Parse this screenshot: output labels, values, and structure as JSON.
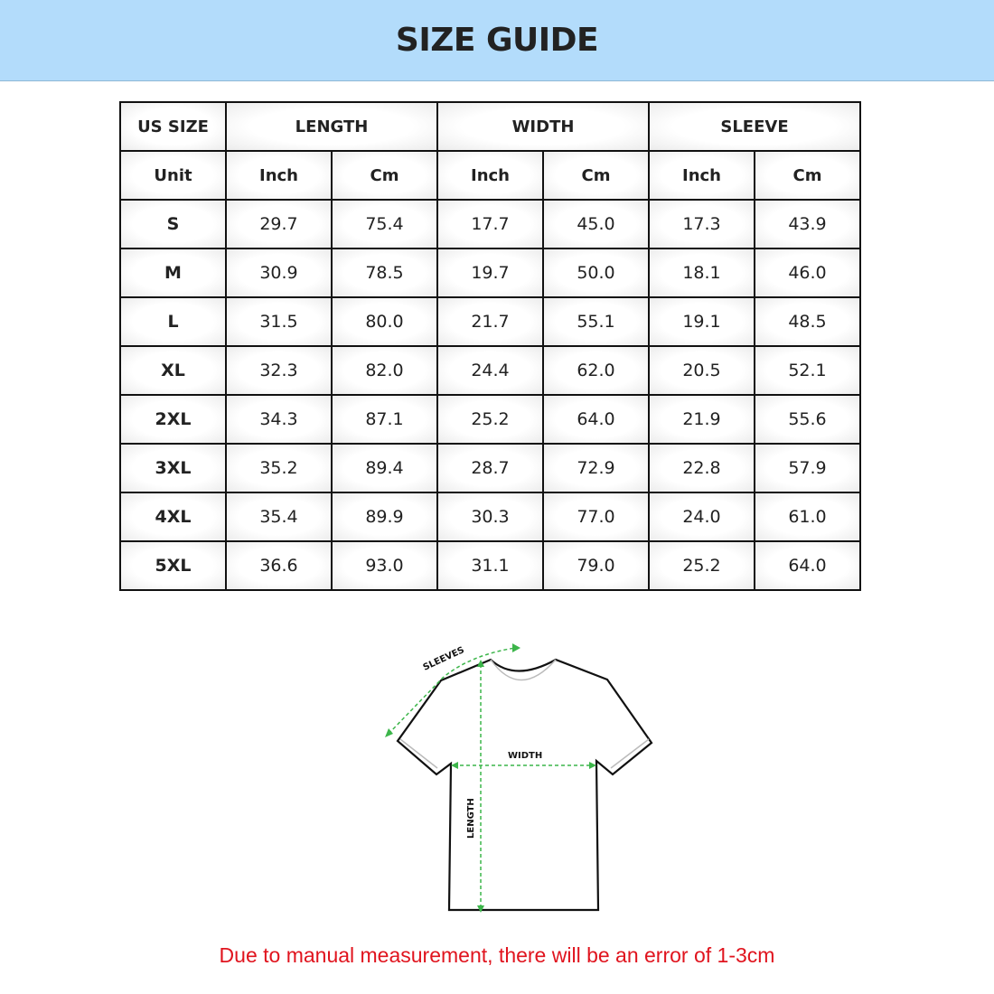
{
  "title": "SIZE GUIDE",
  "table": {
    "group_headers": [
      "US SIZE",
      "LENGTH",
      "WIDTH",
      "SLEEVE"
    ],
    "unit_row": [
      "Unit",
      "Inch",
      "Cm",
      "Inch",
      "Cm",
      "Inch",
      "Cm"
    ],
    "rows": [
      [
        "S",
        "29.7",
        "75.4",
        "17.7",
        "45.0",
        "17.3",
        "43.9"
      ],
      [
        "M",
        "30.9",
        "78.5",
        "19.7",
        "50.0",
        "18.1",
        "46.0"
      ],
      [
        "L",
        "31.5",
        "80.0",
        "21.7",
        "55.1",
        "19.1",
        "48.5"
      ],
      [
        "XL",
        "32.3",
        "82.0",
        "24.4",
        "62.0",
        "20.5",
        "52.1"
      ],
      [
        "2XL",
        "34.3",
        "87.1",
        "25.2",
        "64.0",
        "21.9",
        "55.6"
      ],
      [
        "3XL",
        "35.2",
        "89.4",
        "28.7",
        "72.9",
        "22.8",
        "57.9"
      ],
      [
        "4XL",
        "35.4",
        "89.9",
        "30.3",
        "77.0",
        "24.0",
        "61.0"
      ],
      [
        "5XL",
        "36.6",
        "93.0",
        "31.1",
        "79.0",
        "25.2",
        "64.0"
      ]
    ]
  },
  "diagram": {
    "labels": {
      "sleeves": "SLEEVES",
      "width": "WIDTH",
      "length": "LENGTH"
    },
    "arrow_color": "#3cb54a"
  },
  "note": "Due to manual measurement, there will be an error of 1-3cm",
  "colors": {
    "banner": "#b3dcfb",
    "note": "#e0141e"
  }
}
